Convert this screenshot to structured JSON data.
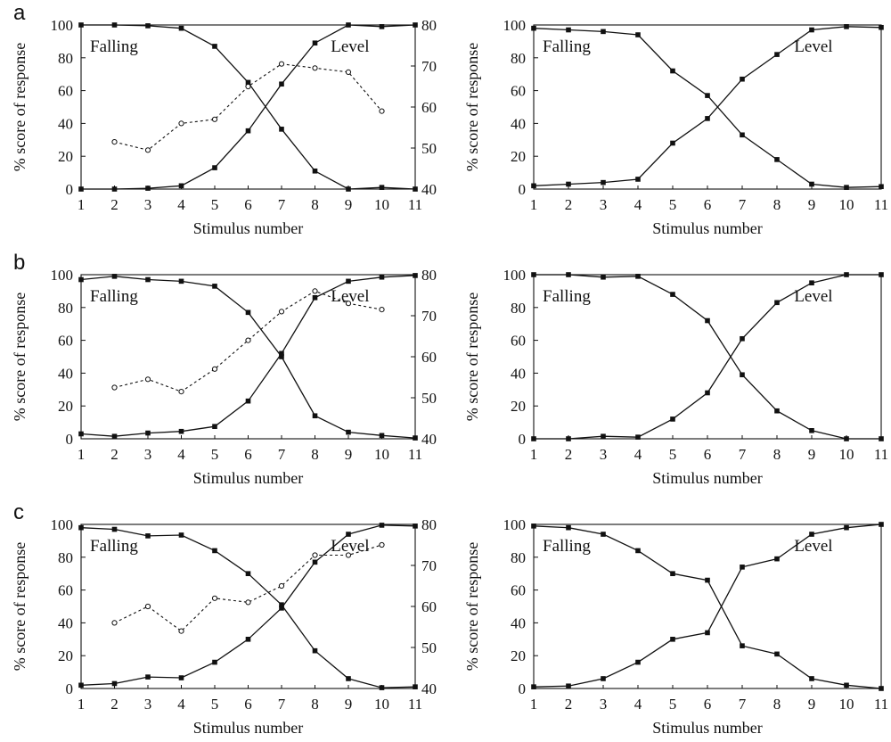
{
  "figure": {
    "panel_letters": [
      "a",
      "b",
      "c"
    ]
  },
  "chart_data": [
    {
      "panel": "a",
      "position": "left",
      "type": "line",
      "xlabel": "Stimulus number",
      "ylabel": "% score of response",
      "xlim": [
        1,
        11
      ],
      "ylim": [
        0,
        100
      ],
      "xticks": [
        1,
        2,
        3,
        4,
        5,
        6,
        7,
        8,
        9,
        10,
        11
      ],
      "yticks": [
        0,
        20,
        40,
        60,
        80,
        100
      ],
      "y2lim": [
        40,
        80
      ],
      "y2ticks": [
        40,
        50,
        60,
        70,
        80
      ],
      "annotations": [
        "Falling",
        "Level"
      ],
      "x": [
        1,
        2,
        3,
        4,
        5,
        6,
        7,
        8,
        9,
        10,
        11
      ],
      "series": [
        {
          "style": "solid-square",
          "axis": "left",
          "values": [
            100,
            100,
            99.5,
            98,
            87,
            65,
            36.5,
            11,
            0,
            1,
            0
          ]
        },
        {
          "style": "solid-square",
          "axis": "left",
          "values": [
            0,
            0,
            0.5,
            2,
            13,
            35.5,
            64,
            89,
            100,
            99,
            100
          ]
        },
        {
          "style": "dotted-circle",
          "axis": "right",
          "x": [
            2,
            3,
            4,
            5,
            6,
            7,
            8,
            9,
            10
          ],
          "values": [
            51.5,
            49.5,
            56,
            57,
            65,
            70.5,
            69.5,
            68.5,
            59
          ]
        }
      ]
    },
    {
      "panel": "a",
      "position": "right",
      "type": "line",
      "xlabel": "Stimulus number",
      "ylabel": "% score of response",
      "xlim": [
        1,
        11
      ],
      "ylim": [
        0,
        100
      ],
      "xticks": [
        1,
        2,
        3,
        4,
        5,
        6,
        7,
        8,
        9,
        10,
        11
      ],
      "yticks": [
        0,
        20,
        40,
        60,
        80,
        100
      ],
      "annotations": [
        "Falling",
        "Level"
      ],
      "x": [
        1,
        2,
        3,
        4,
        5,
        6,
        7,
        8,
        9,
        10,
        11
      ],
      "series": [
        {
          "style": "solid-square",
          "axis": "left",
          "values": [
            98,
            97,
            96,
            94,
            72,
            57,
            33,
            18,
            3,
            1,
            1.5
          ]
        },
        {
          "style": "solid-square",
          "axis": "left",
          "values": [
            2,
            3,
            4,
            6,
            28,
            43,
            67,
            82,
            97,
            99,
            98.5
          ]
        }
      ]
    },
    {
      "panel": "b",
      "position": "left",
      "type": "line",
      "xlabel": "Stimulus number",
      "ylabel": "% score of response",
      "xlim": [
        1,
        11
      ],
      "ylim": [
        0,
        100
      ],
      "xticks": [
        1,
        2,
        3,
        4,
        5,
        6,
        7,
        8,
        9,
        10,
        11
      ],
      "yticks": [
        0,
        20,
        40,
        60,
        80,
        100
      ],
      "y2lim": [
        40,
        80
      ],
      "y2ticks": [
        40,
        50,
        60,
        70,
        80
      ],
      "annotations": [
        "Falling",
        "Level"
      ],
      "x": [
        1,
        2,
        3,
        4,
        5,
        6,
        7,
        8,
        9,
        10,
        11
      ],
      "series": [
        {
          "style": "solid-square",
          "axis": "left",
          "values": [
            97,
            99,
            97,
            96,
            93,
            77,
            50,
            14,
            4,
            2,
            0.5
          ]
        },
        {
          "style": "solid-square",
          "axis": "left",
          "values": [
            3,
            1.5,
            3.5,
            4.5,
            7.5,
            23,
            52,
            86,
            96,
            98.5,
            99.5
          ]
        },
        {
          "style": "dotted-circle",
          "axis": "right",
          "x": [
            2,
            3,
            4,
            5,
            6,
            7,
            8,
            9,
            10
          ],
          "values": [
            52.5,
            54.5,
            51.5,
            57,
            64,
            71,
            76,
            73,
            71.5
          ]
        }
      ]
    },
    {
      "panel": "b",
      "position": "right",
      "type": "line",
      "xlabel": "Stimulus number",
      "ylabel": "% score of response",
      "xlim": [
        1,
        11
      ],
      "ylim": [
        0,
        100
      ],
      "xticks": [
        1,
        2,
        3,
        4,
        5,
        6,
        7,
        8,
        9,
        10,
        11
      ],
      "yticks": [
        0,
        20,
        40,
        60,
        80,
        100
      ],
      "annotations": [
        "Falling",
        "Level"
      ],
      "x": [
        1,
        2,
        3,
        4,
        5,
        6,
        7,
        8,
        9,
        10,
        11
      ],
      "series": [
        {
          "style": "solid-square",
          "axis": "left",
          "values": [
            100,
            100,
            98.5,
            99,
            88,
            72,
            39,
            17,
            5,
            0,
            0
          ]
        },
        {
          "style": "solid-square",
          "axis": "left",
          "values": [
            0,
            0,
            1.5,
            1,
            12,
            28,
            61,
            83,
            95,
            100,
            100
          ]
        }
      ]
    },
    {
      "panel": "c",
      "position": "left",
      "type": "line",
      "xlabel": "Stimulus number",
      "ylabel": "% score of response",
      "xlim": [
        1,
        11
      ],
      "ylim": [
        0,
        100
      ],
      "xticks": [
        1,
        2,
        3,
        4,
        5,
        6,
        7,
        8,
        9,
        10,
        11
      ],
      "yticks": [
        0,
        20,
        40,
        60,
        80,
        100
      ],
      "y2lim": [
        40,
        80
      ],
      "y2ticks": [
        40,
        50,
        60,
        70,
        80
      ],
      "annotations": [
        "Falling",
        "Level"
      ],
      "x": [
        1,
        2,
        3,
        4,
        5,
        6,
        7,
        8,
        9,
        10,
        11
      ],
      "series": [
        {
          "style": "solid-square",
          "axis": "left",
          "values": [
            98,
            97,
            93,
            93.5,
            84,
            70,
            51,
            23,
            6,
            0.5,
            1
          ]
        },
        {
          "style": "solid-square",
          "axis": "left",
          "values": [
            2,
            3,
            7,
            6.5,
            16,
            30,
            49,
            77,
            94,
            99.5,
            99
          ]
        },
        {
          "style": "dotted-circle",
          "axis": "right",
          "x": [
            2,
            3,
            4,
            5,
            6,
            7,
            8,
            9,
            10
          ],
          "values": [
            56,
            60,
            54,
            62,
            61,
            65,
            72.5,
            72.5,
            75
          ]
        }
      ]
    },
    {
      "panel": "c",
      "position": "right",
      "type": "line",
      "xlabel": "Stimulus number",
      "ylabel": "% score of response",
      "xlim": [
        1,
        11
      ],
      "ylim": [
        0,
        100
      ],
      "xticks": [
        1,
        2,
        3,
        4,
        5,
        6,
        7,
        8,
        9,
        10,
        11
      ],
      "yticks": [
        0,
        20,
        40,
        60,
        80,
        100
      ],
      "annotations": [
        "Falling",
        "Level"
      ],
      "x": [
        1,
        2,
        3,
        4,
        5,
        6,
        7,
        8,
        9,
        10,
        11
      ],
      "series": [
        {
          "style": "solid-square",
          "axis": "left",
          "values": [
            99,
            98,
            94,
            84,
            70,
            66,
            26,
            21,
            6,
            2,
            0
          ]
        },
        {
          "style": "solid-square",
          "axis": "left",
          "values": [
            1,
            1.5,
            6,
            16,
            30,
            34,
            74,
            79,
            94,
            98,
            100
          ]
        }
      ]
    }
  ]
}
